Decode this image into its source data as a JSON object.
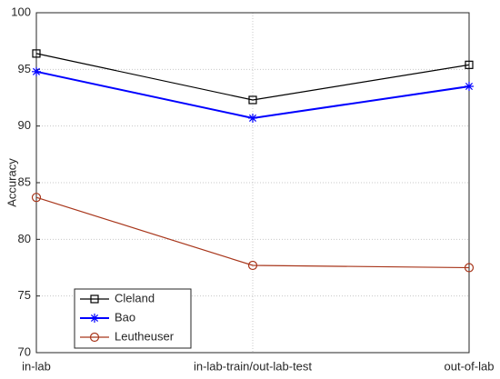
{
  "chart_data": {
    "type": "line",
    "ylabel": "Accuracy",
    "categories": [
      "in-lab",
      "in-lab-train/out-lab-test",
      "out-of-lab"
    ],
    "series": [
      {
        "name": "Cleland",
        "color": "#000000",
        "marker": "square",
        "values": [
          96.4,
          92.3,
          95.4
        ]
      },
      {
        "name": "Bao",
        "color": "#0000ff",
        "marker": "star",
        "values": [
          94.8,
          90.7,
          93.5
        ]
      },
      {
        "name": "Leutheuser",
        "color": "#a8361b",
        "marker": "circle",
        "values": [
          83.7,
          77.7,
          77.5
        ]
      }
    ],
    "ylim": [
      70,
      100
    ],
    "yticks": [
      70,
      75,
      80,
      85,
      90,
      95,
      100
    ],
    "grid": true,
    "legend": "lower left"
  }
}
